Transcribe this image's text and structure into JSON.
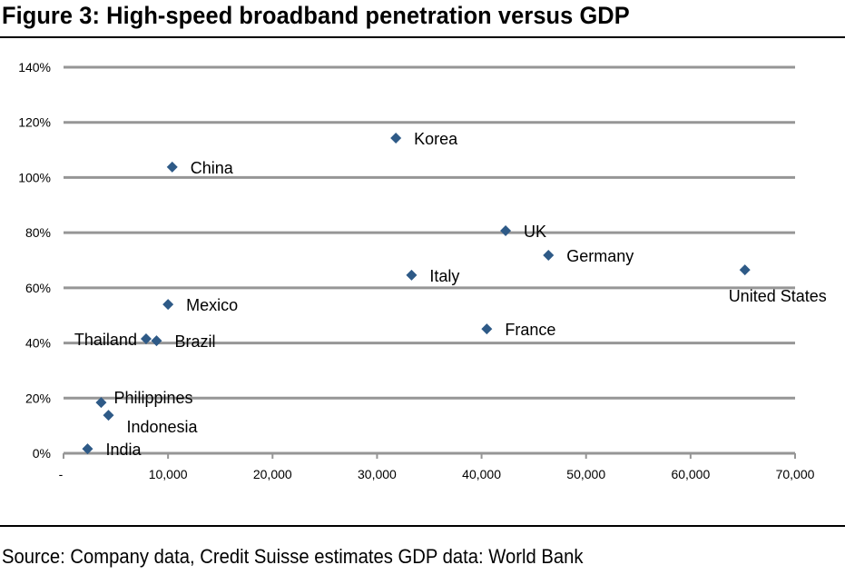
{
  "figure": {
    "title": "Figure 3: High-speed broadband penetration versus GDP",
    "source": "Source: Company data, Credit Suisse estimates GDP data: World Bank"
  },
  "colors": {
    "marker": "#2E5A87",
    "gridline": "#969696",
    "text": "#000000"
  },
  "chart_data": {
    "type": "scatter",
    "title": "High-speed broadband penetration versus GDP",
    "xlabel": "",
    "ylabel": "",
    "xlim": [
      0,
      70000
    ],
    "ylim": [
      0,
      140
    ],
    "grid": true,
    "legend": "none",
    "x_ticks": [
      0,
      10000,
      20000,
      30000,
      40000,
      50000,
      60000,
      70000
    ],
    "x_tick_labels": [
      "-",
      "10,000",
      "20,000",
      "30,000",
      "40,000",
      "50,000",
      "60,000",
      "70,000"
    ],
    "y_ticks": [
      0,
      20,
      40,
      60,
      80,
      100,
      120,
      140
    ],
    "y_tick_labels": [
      "0%",
      "20%",
      "40%",
      "60%",
      "80%",
      "100%",
      "120%",
      "140%"
    ],
    "marker": "diamond",
    "points": [
      {
        "label": "India",
        "x": 2300,
        "y": 1.6,
        "label_pos": "right"
      },
      {
        "label": "Philippines",
        "x": 3600,
        "y": 18.4,
        "label_pos": "right-up"
      },
      {
        "label": "Indonesia",
        "x": 4300,
        "y": 13.8,
        "label_pos": "right-down"
      },
      {
        "label": "Thailand",
        "x": 7900,
        "y": 41.5,
        "label_pos": "left"
      },
      {
        "label": "Brazil",
        "x": 8900,
        "y": 40.8,
        "label_pos": "right"
      },
      {
        "label": "Mexico",
        "x": 10000,
        "y": 54.0,
        "label_pos": "right"
      },
      {
        "label": "China",
        "x": 10400,
        "y": 103.8,
        "label_pos": "right"
      },
      {
        "label": "Korea",
        "x": 31800,
        "y": 114.3,
        "label_pos": "right"
      },
      {
        "label": "Italy",
        "x": 33300,
        "y": 64.6,
        "label_pos": "right"
      },
      {
        "label": "France",
        "x": 40500,
        "y": 45.1,
        "label_pos": "right"
      },
      {
        "label": "UK",
        "x": 42300,
        "y": 80.7,
        "label_pos": "right"
      },
      {
        "label": "Germany",
        "x": 46400,
        "y": 71.8,
        "label_pos": "right"
      },
      {
        "label": "United States",
        "x": 65200,
        "y": 66.5,
        "label_pos": "below"
      }
    ]
  }
}
